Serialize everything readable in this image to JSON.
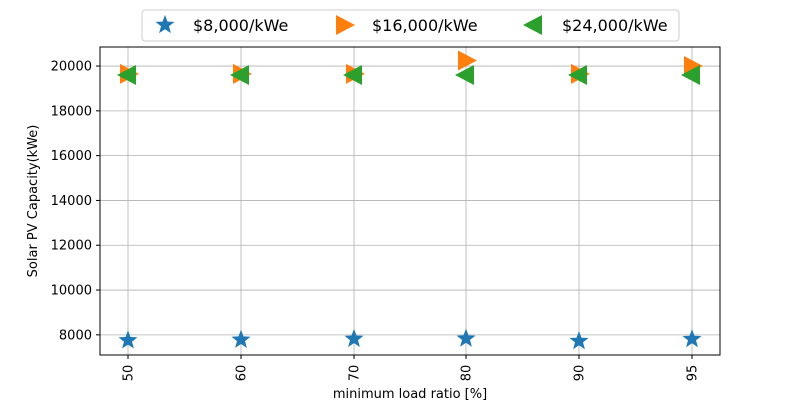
{
  "chart_data": {
    "type": "scatter",
    "xlabel": "minimum load ratio [%]",
    "ylabel": "Solar PV Capacity(kWe)",
    "categories": [
      "50",
      "60",
      "70",
      "80",
      "90",
      "95"
    ],
    "ylim": [
      7100,
      20850
    ],
    "yticks": [
      8000,
      10000,
      12000,
      14000,
      16000,
      18000,
      20000
    ],
    "grid": true,
    "legend_position": "top-center",
    "series": [
      {
        "name": "$8,000/kWe",
        "marker": "star",
        "color": "#1f77b4",
        "values": [
          7750,
          7780,
          7820,
          7830,
          7720,
          7810
        ]
      },
      {
        "name": "$16,000/kWe",
        "marker": "triangle-right",
        "color": "#ff7f0e",
        "values": [
          19650,
          19650,
          19650,
          20250,
          19650,
          20000
        ]
      },
      {
        "name": "$24,000/kWe",
        "marker": "triangle-left",
        "color": "#2ca02c",
        "values": [
          19600,
          19600,
          19600,
          19600,
          19600,
          19600
        ]
      }
    ]
  }
}
